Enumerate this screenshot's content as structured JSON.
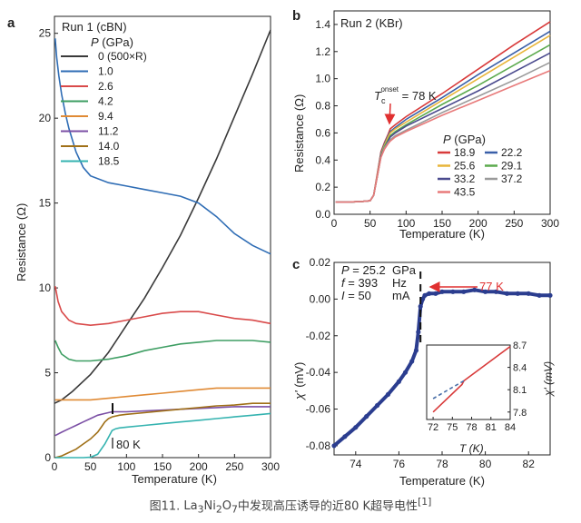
{
  "caption": {
    "prefix": "图11. ",
    "formula": [
      {
        "text": "La",
        "sub": "3"
      },
      {
        "text": "Ni",
        "sub": "2"
      },
      {
        "text": "O",
        "sub": "7"
      }
    ],
    "suffix": "中发现高压诱导的近80 K超导电性",
    "ref": "[1]"
  },
  "chart_data": [
    {
      "panel_label": "a",
      "type": "line",
      "run_label": "Run 1 (cBN)",
      "xlabel": "Temperature (K)",
      "ylabel": "Resistance (Ω)",
      "xlim": [
        0,
        300
      ],
      "ylim": [
        0,
        26
      ],
      "xticks": [
        0,
        50,
        100,
        150,
        200,
        250,
        300
      ],
      "yticks": [
        0,
        5,
        10,
        15,
        20,
        25
      ],
      "legend_title_italic": "P",
      "legend_title_rest": " (GPa)",
      "legend_position": "upper-left",
      "annotation": "80 K",
      "annotation_x": 80,
      "series": [
        {
          "name": "0 (500×R)",
          "color": "#3a3a3a",
          "x": [
            0,
            10,
            25,
            50,
            75,
            100,
            125,
            150,
            175,
            200,
            225,
            250,
            275,
            300
          ],
          "y": [
            3.2,
            3.4,
            3.9,
            4.9,
            6.2,
            7.8,
            9.4,
            11.2,
            13.1,
            15.3,
            17.6,
            20.1,
            22.6,
            25.2
          ]
        },
        {
          "name": "1.0",
          "color": "#2f6db5",
          "x": [
            1,
            3,
            6,
            10,
            15,
            20,
            30,
            40,
            50,
            75,
            100,
            125,
            150,
            175,
            200,
            225,
            250,
            275,
            300
          ],
          "y": [
            24.7,
            23.6,
            22.5,
            21.4,
            20.3,
            19.4,
            18.0,
            17.1,
            16.6,
            16.2,
            16.0,
            15.8,
            15.6,
            15.4,
            15.0,
            14.2,
            13.2,
            12.5,
            12.0
          ]
        },
        {
          "name": "2.6",
          "color": "#d94a4a",
          "x": [
            1,
            5,
            10,
            20,
            30,
            50,
            75,
            100,
            125,
            150,
            175,
            200,
            225,
            250,
            275,
            300
          ],
          "y": [
            10.1,
            9.2,
            8.6,
            8.1,
            7.9,
            7.8,
            7.9,
            8.1,
            8.3,
            8.5,
            8.6,
            8.6,
            8.4,
            8.2,
            8.1,
            7.9
          ]
        },
        {
          "name": "4.2",
          "color": "#3e9e63",
          "x": [
            1,
            5,
            10,
            20,
            30,
            50,
            75,
            100,
            125,
            150,
            175,
            200,
            225,
            250,
            275,
            300
          ],
          "y": [
            6.9,
            6.5,
            6.1,
            5.8,
            5.7,
            5.7,
            5.8,
            6.0,
            6.3,
            6.5,
            6.7,
            6.8,
            6.9,
            6.9,
            6.9,
            6.8
          ]
        },
        {
          "name": "9.4",
          "color": "#e08a35",
          "x": [
            1,
            25,
            50,
            75,
            100,
            125,
            150,
            175,
            200,
            225,
            250,
            275,
            300
          ],
          "y": [
            3.4,
            3.4,
            3.4,
            3.5,
            3.6,
            3.7,
            3.8,
            3.9,
            4.0,
            4.1,
            4.1,
            4.1,
            4.1
          ]
        },
        {
          "name": "11.2",
          "color": "#7b4fa5",
          "x": [
            1,
            10,
            20,
            30,
            40,
            50,
            60,
            70,
            80,
            100,
            125,
            150,
            175,
            200,
            225,
            250,
            275,
            300
          ],
          "y": [
            1.3,
            1.5,
            1.7,
            1.9,
            2.1,
            2.3,
            2.5,
            2.6,
            2.7,
            2.7,
            2.75,
            2.8,
            2.85,
            2.9,
            2.95,
            3.0,
            3.0,
            3.0
          ]
        },
        {
          "name": "14.0",
          "color": "#a07018",
          "x": [
            1,
            10,
            20,
            30,
            40,
            50,
            60,
            65,
            70,
            75,
            80,
            90,
            100,
            125,
            150,
            175,
            200,
            225,
            250,
            275,
            300
          ],
          "y": [
            0.0,
            0.1,
            0.3,
            0.5,
            0.8,
            1.1,
            1.5,
            1.8,
            2.1,
            2.3,
            2.4,
            2.5,
            2.55,
            2.65,
            2.75,
            2.85,
            2.95,
            3.05,
            3.1,
            3.2,
            3.2
          ]
        },
        {
          "name": "18.5",
          "color": "#35b3b0",
          "x": [
            1,
            20,
            40,
            50,
            60,
            70,
            75,
            80,
            85,
            90,
            100,
            125,
            150,
            175,
            200,
            225,
            250,
            275,
            300
          ],
          "y": [
            0.0,
            0.0,
            0.0,
            0.02,
            0.2,
            0.8,
            1.2,
            1.6,
            1.7,
            1.75,
            1.8,
            1.9,
            2.0,
            2.1,
            2.2,
            2.3,
            2.4,
            2.5,
            2.6
          ]
        }
      ]
    },
    {
      "panel_label": "b",
      "type": "line",
      "run_label": "Run 2 (KBr)",
      "xlabel": "Temperature (K)",
      "ylabel": "Resistance (Ω)",
      "xlim": [
        0,
        300
      ],
      "ylim": [
        0,
        1.5
      ],
      "xticks": [
        0,
        50,
        100,
        150,
        200,
        250,
        300
      ],
      "yticks": [
        0,
        0.2,
        0.4,
        0.6,
        0.8,
        1.0,
        1.2,
        1.4
      ],
      "legend_title_italic": "P",
      "legend_title_rest": " (GPa)",
      "legend_position": "lower-right",
      "annotation_T": "T",
      "annotation_c": "c",
      "annotation_sup": "onset",
      "annotation_rest": " = 78 K",
      "annotation_x": 78,
      "series": [
        {
          "name": "18.9",
          "color": "#d83a3a",
          "x": [
            2,
            20,
            40,
            50,
            55,
            60,
            65,
            70,
            75,
            78,
            85,
            100,
            150,
            200,
            250,
            300
          ],
          "y": [
            0.09,
            0.09,
            0.095,
            0.1,
            0.14,
            0.3,
            0.46,
            0.53,
            0.59,
            0.63,
            0.66,
            0.72,
            0.89,
            1.07,
            1.25,
            1.42
          ]
        },
        {
          "name": "22.2",
          "color": "#3a5fa8",
          "x": [
            2,
            20,
            40,
            50,
            55,
            60,
            65,
            70,
            75,
            78,
            85,
            100,
            150,
            200,
            250,
            300
          ],
          "y": [
            0.09,
            0.09,
            0.095,
            0.1,
            0.14,
            0.29,
            0.45,
            0.52,
            0.58,
            0.61,
            0.64,
            0.7,
            0.86,
            1.03,
            1.19,
            1.35
          ]
        },
        {
          "name": "25.6",
          "color": "#e8b53a",
          "x": [
            2,
            20,
            40,
            50,
            55,
            60,
            65,
            70,
            75,
            78,
            85,
            100,
            150,
            200,
            250,
            300
          ],
          "y": [
            0.09,
            0.09,
            0.095,
            0.1,
            0.14,
            0.29,
            0.44,
            0.51,
            0.57,
            0.6,
            0.63,
            0.68,
            0.84,
            1.0,
            1.16,
            1.32
          ]
        },
        {
          "name": "29.1",
          "color": "#5caa4e",
          "x": [
            2,
            20,
            40,
            50,
            55,
            60,
            65,
            70,
            75,
            78,
            85,
            100,
            150,
            200,
            250,
            300
          ],
          "y": [
            0.09,
            0.09,
            0.095,
            0.1,
            0.14,
            0.28,
            0.43,
            0.5,
            0.55,
            0.58,
            0.61,
            0.66,
            0.81,
            0.95,
            1.1,
            1.25
          ]
        },
        {
          "name": "33.2",
          "color": "#4a4a8e",
          "x": [
            2,
            20,
            40,
            50,
            55,
            60,
            65,
            70,
            75,
            78,
            85,
            100,
            150,
            200,
            250,
            300
          ],
          "y": [
            0.09,
            0.09,
            0.095,
            0.1,
            0.14,
            0.28,
            0.43,
            0.49,
            0.54,
            0.57,
            0.6,
            0.65,
            0.78,
            0.91,
            1.05,
            1.19
          ]
        },
        {
          "name": "37.2",
          "color": "#9a9a9a",
          "x": [
            2,
            20,
            40,
            50,
            55,
            60,
            65,
            70,
            75,
            78,
            85,
            100,
            150,
            200,
            250,
            300
          ],
          "y": [
            0.09,
            0.09,
            0.095,
            0.1,
            0.14,
            0.28,
            0.42,
            0.49,
            0.53,
            0.55,
            0.58,
            0.62,
            0.75,
            0.87,
            0.99,
            1.12
          ]
        },
        {
          "name": "43.5",
          "color": "#e87a7a",
          "x": [
            2,
            20,
            40,
            50,
            55,
            60,
            65,
            70,
            75,
            78,
            85,
            100,
            150,
            200,
            250,
            300
          ],
          "y": [
            0.09,
            0.09,
            0.095,
            0.1,
            0.14,
            0.28,
            0.42,
            0.48,
            0.52,
            0.54,
            0.57,
            0.61,
            0.73,
            0.84,
            0.95,
            1.06
          ]
        }
      ]
    },
    {
      "panel_label": "c",
      "type": "scatter",
      "xlabel": "Temperature (K)",
      "ylabel_italic": "χ'",
      "ylabel_rest": " (mV)",
      "xlim": [
        73,
        83
      ],
      "ylim": [
        -0.085,
        0.02
      ],
      "xticks": [
        74,
        76,
        78,
        80,
        82
      ],
      "yticks": [
        0.02,
        0.0,
        -0.02,
        -0.04,
        -0.06,
        -0.08
      ],
      "params": [
        {
          "sym": "P",
          "eq": " = 25.2",
          "unit": "GPa"
        },
        {
          "sym": "f",
          "eq": " = 393",
          "unit": "Hz"
        },
        {
          "sym": "I",
          "eq": " = 50",
          "unit": "mA"
        }
      ],
      "marker_label": "77 K",
      "marker_x": 77,
      "series": [
        {
          "color": "#2b3d8f",
          "x": [
            73.0,
            73.5,
            74.0,
            74.5,
            75.0,
            75.5,
            76.0,
            76.3,
            76.6,
            76.8,
            76.9,
            77.0,
            77.1,
            77.2,
            77.4,
            77.7,
            78.0,
            78.5,
            79.0,
            79.5,
            80.0,
            80.5,
            81.0,
            81.5,
            82.0,
            82.5,
            83.0
          ],
          "y": [
            -0.08,
            -0.075,
            -0.07,
            -0.064,
            -0.058,
            -0.052,
            -0.045,
            -0.04,
            -0.034,
            -0.028,
            -0.018,
            -0.004,
            0.0,
            0.002,
            0.003,
            0.003,
            0.004,
            0.004,
            0.004,
            0.005,
            0.004,
            0.004,
            0.003,
            0.003,
            0.003,
            0.002,
            0.002
          ]
        }
      ],
      "inset": {
        "xlabel": "T (K)",
        "ylabel": "χ' (mV)",
        "xlim": [
          71,
          84
        ],
        "ylim": [
          7.7,
          8.7
        ],
        "xticks": [
          72,
          75,
          78,
          81,
          84
        ],
        "yticks": [
          7.8,
          8.1,
          8.4,
          8.7
        ],
        "series": [
          {
            "color": "#d83a3a",
            "x": [
              72,
              76.5,
              76.8,
              84
            ],
            "y": [
              7.8,
              8.17,
              8.22,
              8.68
            ]
          },
          {
            "color": "#4a6fa8",
            "dashed": true,
            "x": [
              72,
              76.8
            ],
            "y": [
              7.98,
              8.22
            ]
          }
        ]
      }
    }
  ]
}
